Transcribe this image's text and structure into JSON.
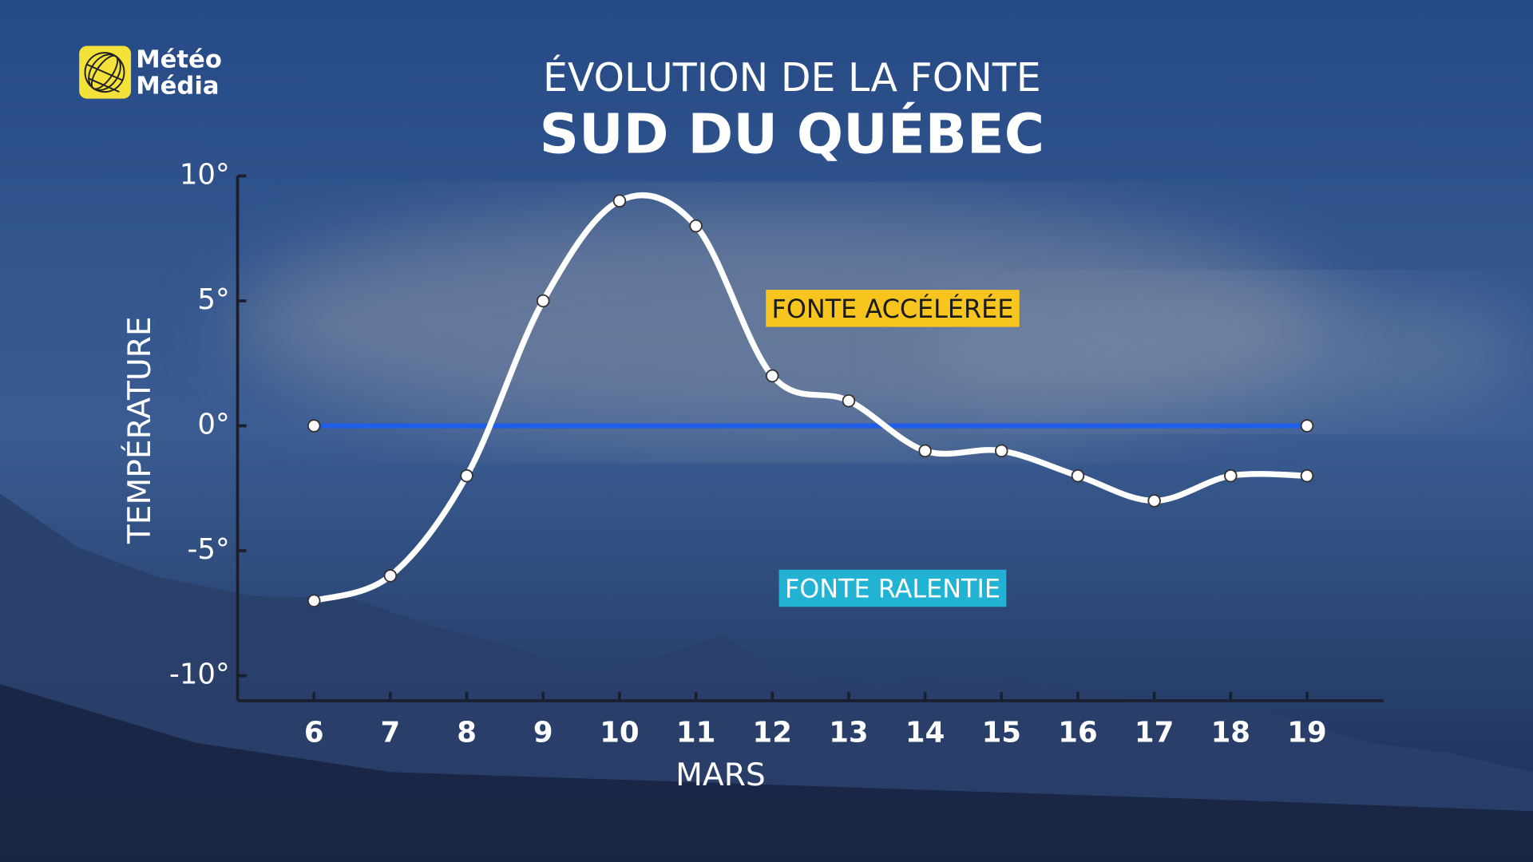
{
  "logo": {
    "line1": "Météo",
    "line2": "Média"
  },
  "chart_data": {
    "type": "line",
    "title": "ÉVOLUTION DE LA FONTE",
    "subtitle": "SUD DU QUÉBEC",
    "x_label": "MARS",
    "y_label": "TEMPÉRATURE",
    "x": [
      6,
      7,
      8,
      9,
      10,
      11,
      12,
      13,
      14,
      15,
      16,
      17,
      18,
      19
    ],
    "xlim": [
      5,
      20
    ],
    "xticks": [
      6,
      7,
      8,
      9,
      10,
      11,
      12,
      13,
      14,
      15,
      16,
      17,
      18,
      19
    ],
    "ylim": [
      -11,
      10
    ],
    "yticks": [
      {
        "value": 10,
        "label": "10°"
      },
      {
        "value": 5,
        "label": "5°"
      },
      {
        "value": 0,
        "label": "0°"
      },
      {
        "value": -5,
        "label": "-5°"
      },
      {
        "value": -10,
        "label": "-10°"
      }
    ],
    "series": [
      {
        "color": "#ffffff",
        "values": [
          -7,
          -6,
          -2,
          5,
          9,
          8,
          2,
          1,
          -1,
          -1,
          -2,
          -3,
          -2,
          -2
        ]
      }
    ],
    "reference_line": {
      "value": 0,
      "color": "#1e5ee8"
    },
    "annotations": [
      {
        "text": "FONTE ACCÉLÉRÉE",
        "color": "#f7c51e",
        "text_color": "#1a1a1a"
      },
      {
        "text": "FONTE RALENTIE",
        "color": "#22b2d4",
        "text_color": "#ffffff"
      }
    ]
  }
}
